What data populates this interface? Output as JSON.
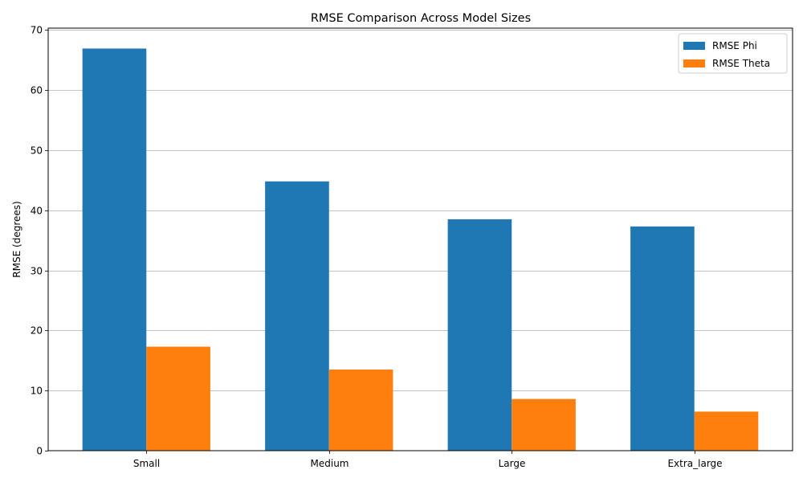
{
  "chart_data": {
    "type": "bar",
    "title": "RMSE Comparison Across Model Sizes",
    "xlabel": "",
    "ylabel": "RMSE (degrees)",
    "categories": [
      "Small",
      "Medium",
      "Large",
      "Extra_large"
    ],
    "series": [
      {
        "name": "RMSE Phi",
        "color": "#1f77b4",
        "values": [
          66.9,
          44.8,
          38.5,
          37.3
        ]
      },
      {
        "name": "RMSE Theta",
        "color": "#ff7f0e",
        "values": [
          17.3,
          13.5,
          8.6,
          6.5
        ]
      }
    ],
    "ylim": [
      0,
      70.3
    ],
    "yticks": [
      0,
      10,
      20,
      30,
      40,
      50,
      60,
      70
    ],
    "grid": "y-major",
    "legend": "top-right"
  }
}
